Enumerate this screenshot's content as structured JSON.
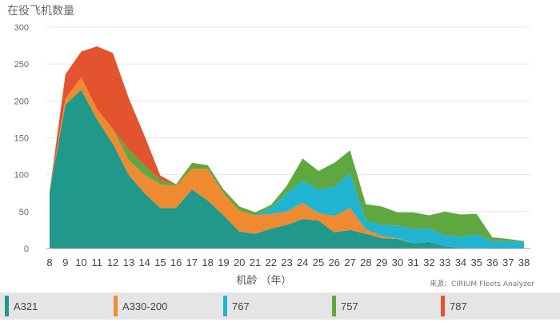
{
  "chart_data": {
    "type": "area",
    "stacked": true,
    "title": "在役飞机数量",
    "xlabel": "机龄 （年）",
    "source": "来源：CIRIUM Fleets Analyzer",
    "ylim": [
      0,
      300
    ],
    "yticks": [
      "0",
      "50",
      "100",
      "150",
      "200",
      "250",
      "300"
    ],
    "categories": [
      "8",
      "9",
      "10",
      "11",
      "12",
      "13",
      "14",
      "15",
      "16",
      "17",
      "18",
      "19",
      "20",
      "21",
      "22",
      "23",
      "24",
      "25",
      "26",
      "27",
      "28",
      "29",
      "30",
      "31",
      "32",
      "33",
      "34",
      "35",
      "36",
      "37",
      "38"
    ],
    "series": [
      {
        "name": "A321",
        "color": "#21998a",
        "values": [
          77,
          195,
          215,
          175,
          142,
          100,
          75,
          55,
          55,
          80,
          65,
          45,
          23,
          20,
          27,
          32,
          40,
          38,
          22,
          25,
          20,
          14,
          13,
          7,
          9,
          3,
          1,
          1,
          0,
          0,
          0
        ]
      },
      {
        "name": "A330-200",
        "color": "#ef8a31",
        "values": [
          0,
          8,
          17,
          14,
          20,
          20,
          25,
          32,
          30,
          28,
          43,
          30,
          28,
          25,
          20,
          18,
          22,
          10,
          22,
          30,
          6,
          3,
          1,
          0,
          0,
          0,
          0,
          0,
          0,
          0,
          0
        ]
      },
      {
        "name": "767",
        "color": "#21b3d2",
        "values": [
          0,
          0,
          0,
          0,
          0,
          0,
          0,
          0,
          0,
          0,
          0,
          0,
          0,
          0,
          8,
          25,
          30,
          32,
          40,
          47,
          12,
          15,
          17,
          20,
          18,
          15,
          15,
          18,
          10,
          10,
          9
        ]
      },
      {
        "name": "757",
        "color": "#5fa840",
        "values": [
          0,
          0,
          0,
          0,
          0,
          14,
          13,
          6,
          2,
          8,
          5,
          5,
          6,
          4,
          4,
          10,
          30,
          25,
          32,
          31,
          22,
          25,
          18,
          22,
          18,
          32,
          30,
          28,
          5,
          3,
          1
        ]
      },
      {
        "name": "787",
        "color": "#e3532d",
        "values": [
          0,
          33,
          35,
          85,
          103,
          70,
          40,
          6,
          0,
          0,
          0,
          0,
          0,
          0,
          0,
          0,
          0,
          0,
          0,
          0,
          0,
          0,
          0,
          0,
          0,
          0,
          0,
          0,
          0,
          0,
          0
        ]
      }
    ],
    "legend_position": "bottom"
  }
}
